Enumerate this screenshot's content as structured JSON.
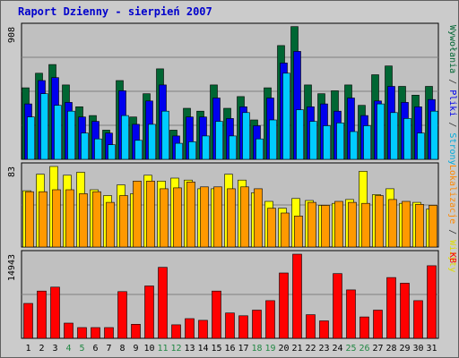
{
  "title": "Raport Dzienny -  sierpień 2007",
  "chart_data": {
    "type": "bar",
    "title": "Raport Dzienny -  sierpień 2007",
    "categories": [
      "1",
      "2",
      "3",
      "4",
      "5",
      "6",
      "7",
      "8",
      "9",
      "10",
      "11",
      "12",
      "13",
      "14",
      "15",
      "16",
      "17",
      "18",
      "19",
      "20",
      "21",
      "22",
      "23",
      "24",
      "25",
      "26",
      "27",
      "28",
      "29",
      "30",
      "31"
    ],
    "weekend_days": [
      "4",
      "5",
      "11",
      "12",
      "18",
      "19",
      "25",
      "26"
    ],
    "panels": [
      {
        "name": "traffic",
        "max_label": "908",
        "ylim": [
          0,
          908
        ],
        "right_labels": [
          {
            "text": "Wywołania",
            "color": "#006633"
          },
          {
            "text": " / ",
            "color": "#333333"
          },
          {
            "text": "Pliki",
            "color": "#0000ee"
          },
          {
            "text": " / ",
            "color": "#333333"
          },
          {
            "text": "Strony",
            "color": "#00aadd"
          }
        ],
        "series": [
          {
            "name": "Wywołania",
            "color": "#006633",
            "values": [
              490,
              590,
              650,
              510,
              360,
              300,
              200,
              540,
              290,
              450,
              620,
              200,
              350,
              330,
              510,
              350,
              430,
              270,
              490,
              780,
              910,
              510,
              450,
              470,
              510,
              370,
              580,
              640,
              500,
              440,
              500
            ]
          },
          {
            "name": "Pliki",
            "color": "#0000ee",
            "values": [
              380,
              540,
              560,
              390,
              290,
              260,
              180,
              470,
              240,
              400,
              510,
              160,
              290,
              290,
              420,
              280,
              360,
              230,
              420,
              660,
              740,
              360,
              380,
              330,
              420,
              300,
              400,
              500,
              390,
              360,
              410
            ]
          },
          {
            "name": "Strony",
            "color": "#00ccff",
            "values": [
              290,
              450,
              370,
              330,
              180,
              140,
              100,
              300,
              130,
              240,
              330,
              110,
              120,
              160,
              260,
              160,
              320,
              140,
              270,
              590,
              340,
              260,
              230,
              250,
              190,
              230,
              380,
              320,
              280,
              180,
              330
            ]
          }
        ]
      },
      {
        "name": "visits",
        "max_label": "83",
        "ylim": [
          0,
          83
        ],
        "right_labels": [
          {
            "text": "Lokalizacje",
            "color": "#ff8800"
          },
          {
            "text": " / ",
            "color": "#333333"
          },
          {
            "text": "Wizyty",
            "color": "#dddd00"
          }
        ],
        "series": [
          {
            "name": "Wizyty",
            "color": "#ffff00",
            "values": [
              58,
              75,
              83,
              74,
              77,
              59,
              53,
              64,
              55,
              74,
              68,
              71,
              69,
              60,
              60,
              75,
              69,
              56,
              47,
              40,
              50,
              48,
              43,
              45,
              49,
              78,
              54,
              60,
              45,
              46,
              39
            ]
          },
          {
            "name": "Lokalizacje",
            "color": "#ff9900",
            "values": [
              57,
              57,
              59,
              59,
              55,
              57,
              46,
              53,
              68,
              68,
              60,
              61,
              67,
              62,
              62,
              60,
              62,
              60,
              40,
              35,
              32,
              46,
              43,
              47,
              46,
              45,
              53,
              49,
              47,
              44,
              43
            ]
          }
        ]
      },
      {
        "name": "kb",
        "max_label": "14943",
        "ylim": [
          0,
          14943
        ],
        "right_labels": [
          {
            "text": "KB",
            "color": "#ff0000"
          }
        ],
        "series": [
          {
            "name": "KB",
            "color": "#ff0000",
            "values": [
              6200,
              8400,
              9100,
              2700,
              1900,
              1900,
              1900,
              8300,
              2500,
              9300,
              12600,
              2400,
              3500,
              3200,
              8400,
              4500,
              4000,
              5000,
              6700,
              11600,
              14943,
              4200,
              3100,
              11500,
              8600,
              3800,
              5000,
              10800,
              9800,
              6700,
              12900
            ]
          }
        ]
      }
    ]
  }
}
